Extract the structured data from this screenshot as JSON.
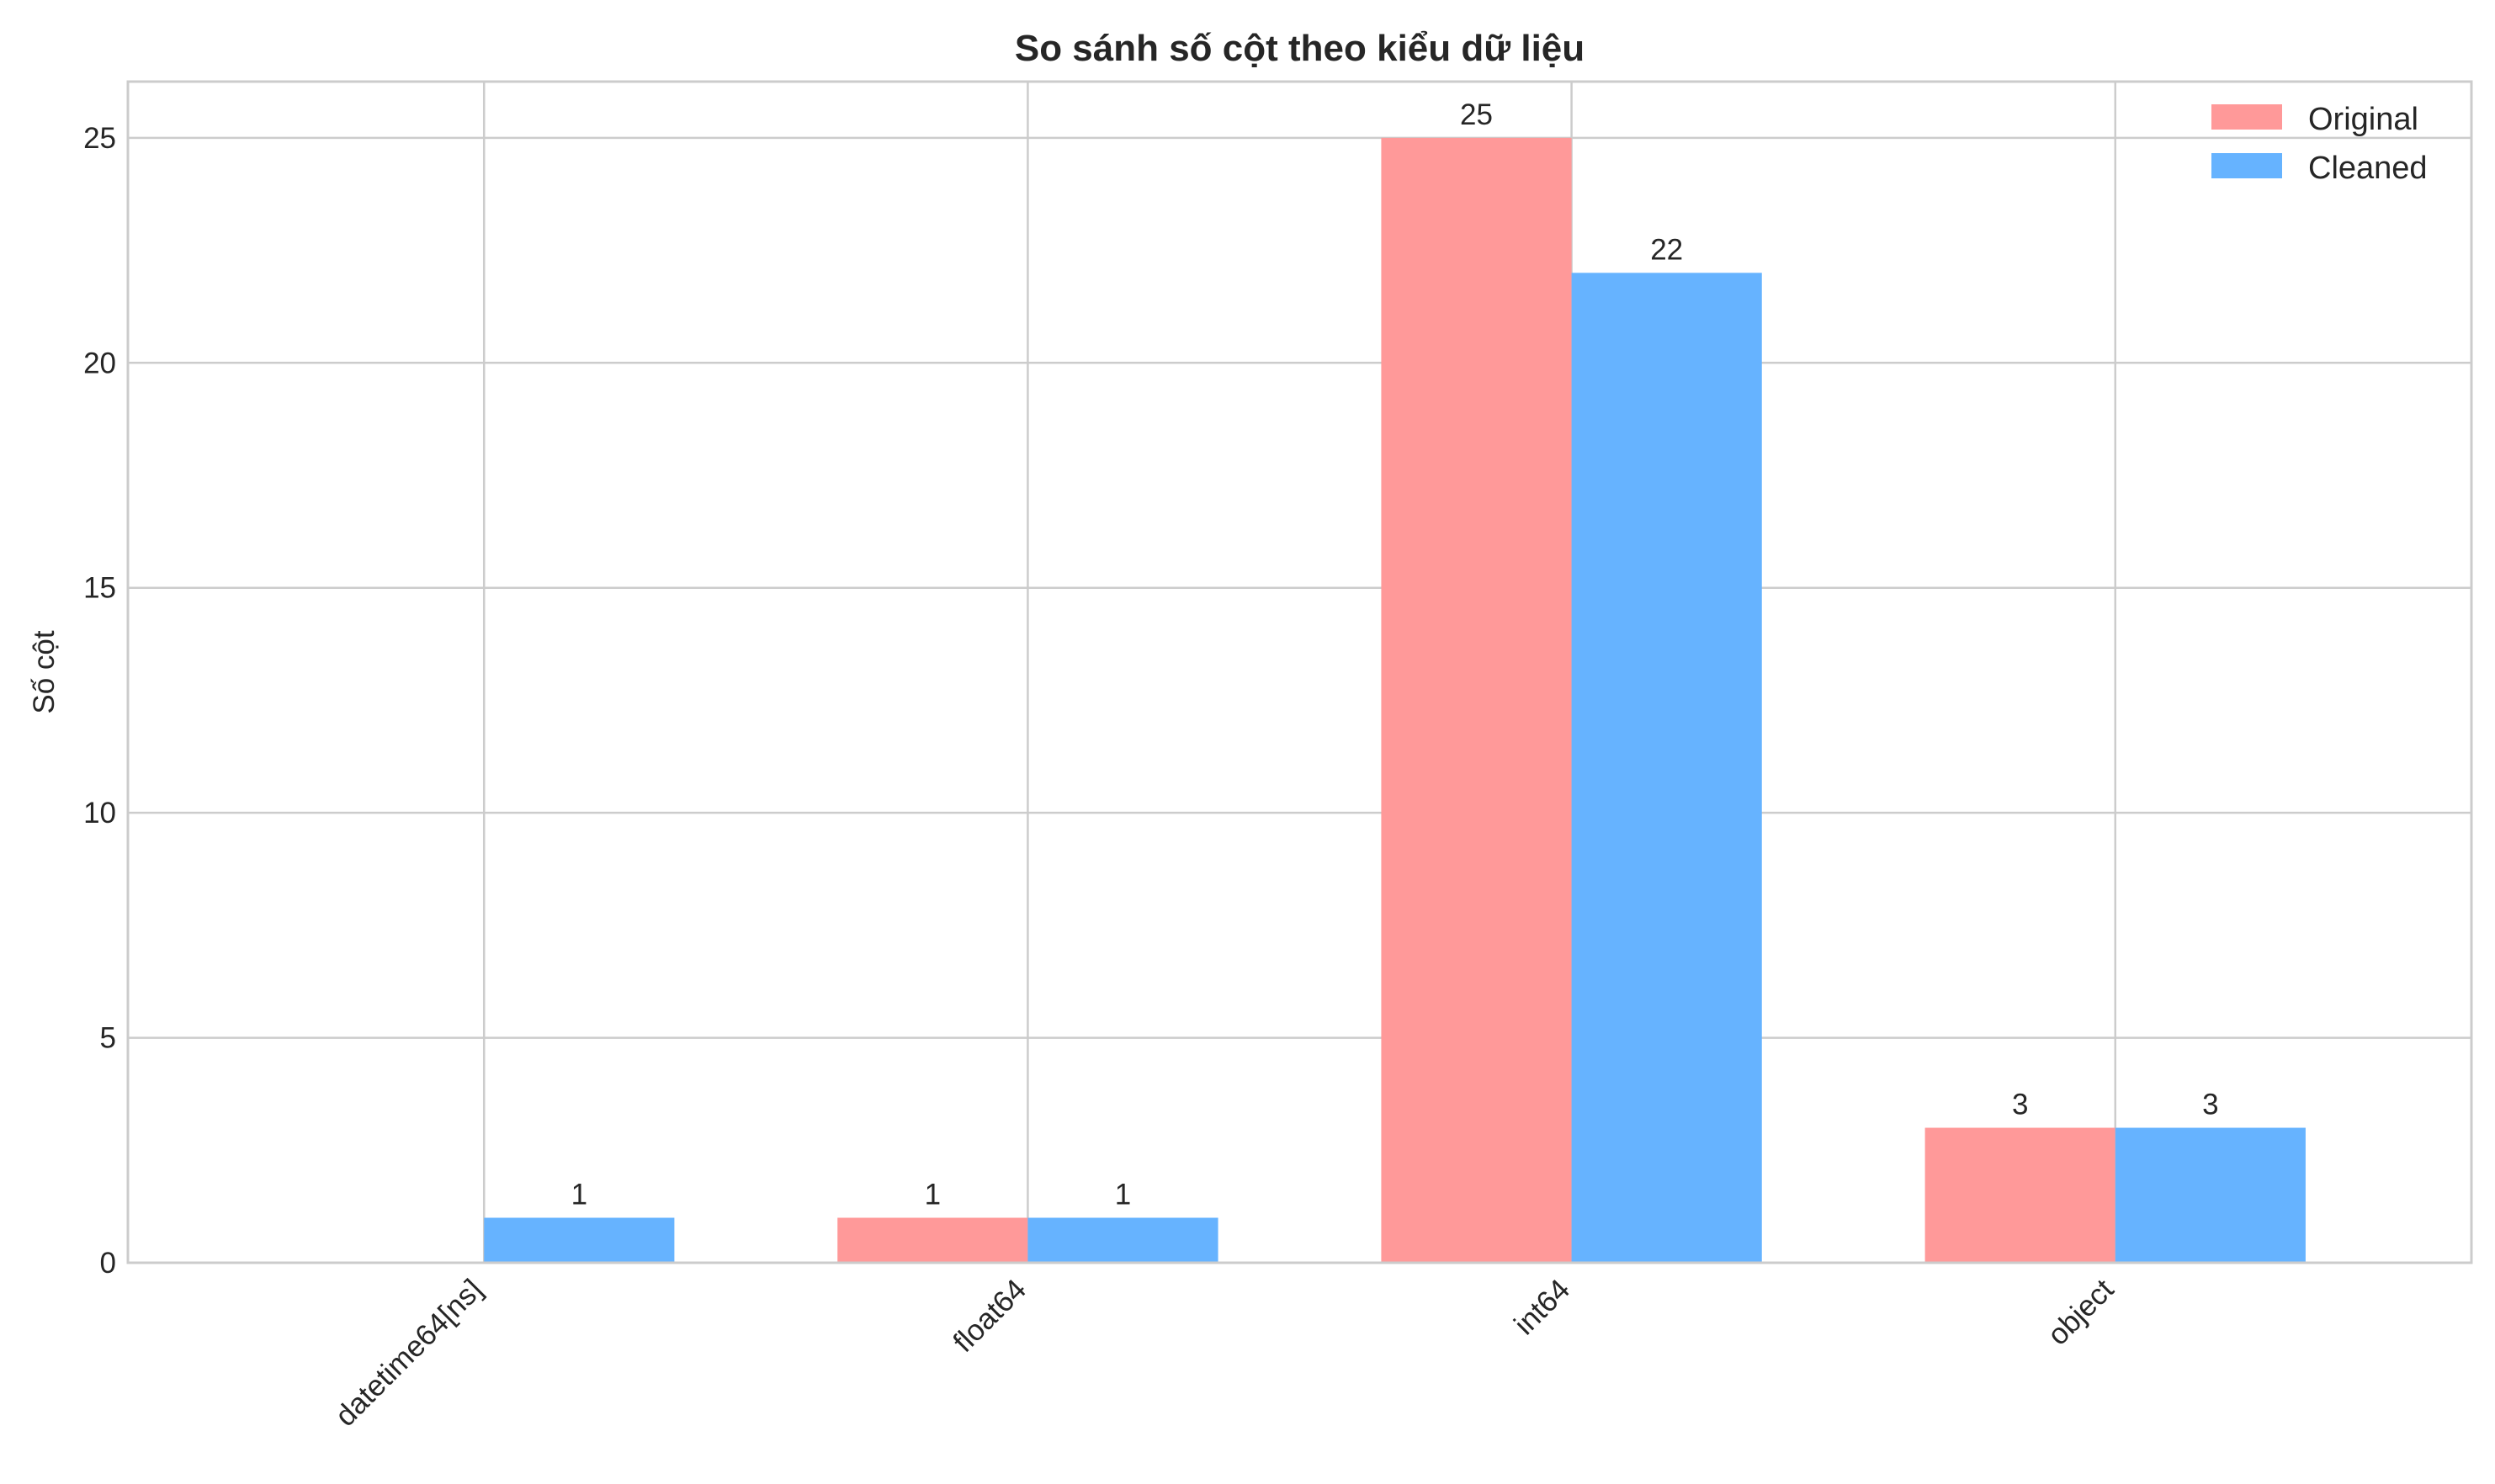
{
  "chart_data": {
    "type": "bar",
    "title": "So sánh số cột theo kiểu dữ liệu",
    "xlabel": "",
    "ylabel": "Số cột",
    "categories": [
      "datetime64[ns]",
      "float64",
      "int64",
      "object"
    ],
    "series": [
      {
        "name": "Original",
        "color": "#ff9999",
        "values": [
          0,
          1,
          25,
          3
        ],
        "labels": [
          "",
          "1",
          "25",
          "3"
        ]
      },
      {
        "name": "Cleaned",
        "color": "#66b3ff",
        "values": [
          1,
          1,
          22,
          3
        ],
        "labels": [
          "1",
          "1",
          "22",
          "3"
        ]
      }
    ],
    "ylim": [
      0,
      26.25
    ],
    "yticks": [
      "0",
      "5",
      "10",
      "15",
      "20",
      "25"
    ],
    "grid": true,
    "legend": "top-right",
    "xtick_rotation": -45
  }
}
